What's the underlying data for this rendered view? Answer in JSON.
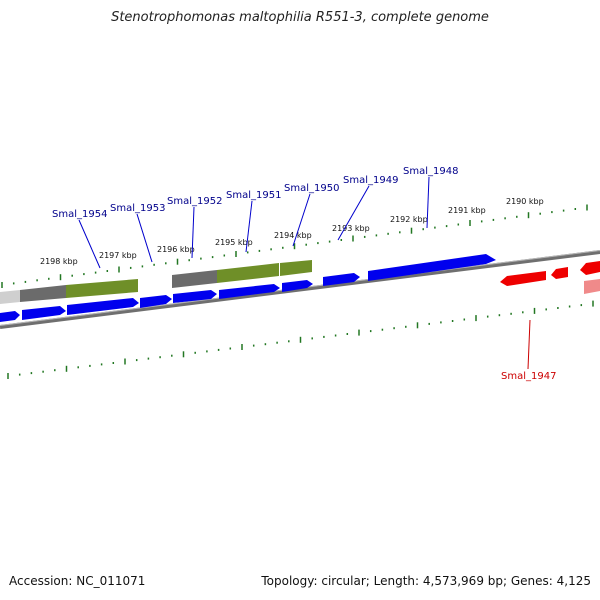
{
  "title": "Stenotrophomonas maltophilia R551-3, complete genome",
  "footer": {
    "accession": "Accession: NC_011071",
    "summary": "Topology: circular; Length: 4,573,969 bp; Genes: 4,125"
  },
  "colors": {
    "forward_gene": "#0000ee",
    "reverse_gene": "#ee0000",
    "label_forward": "#00008b",
    "label_reverse": "#cc0000",
    "tick": "#227722",
    "backbone": "#777777"
  },
  "kbp_labels": [
    "2198 kbp",
    "2197 kbp",
    "2196 kbp",
    "2195 kbp",
    "2194 kbp",
    "2193 kbp",
    "2192 kbp",
    "2191 kbp",
    "2190 kbp"
  ],
  "genes": [
    {
      "name": "Smal_1954",
      "strand": "forward"
    },
    {
      "name": "Smal_1953",
      "strand": "forward"
    },
    {
      "name": "Smal_1952",
      "strand": "forward"
    },
    {
      "name": "Smal_1951",
      "strand": "forward"
    },
    {
      "name": "Smal_1950",
      "strand": "forward"
    },
    {
      "name": "Smal_1949",
      "strand": "forward"
    },
    {
      "name": "Smal_1948",
      "strand": "forward"
    },
    {
      "name": "Smal_1947",
      "strand": "reverse"
    }
  ]
}
